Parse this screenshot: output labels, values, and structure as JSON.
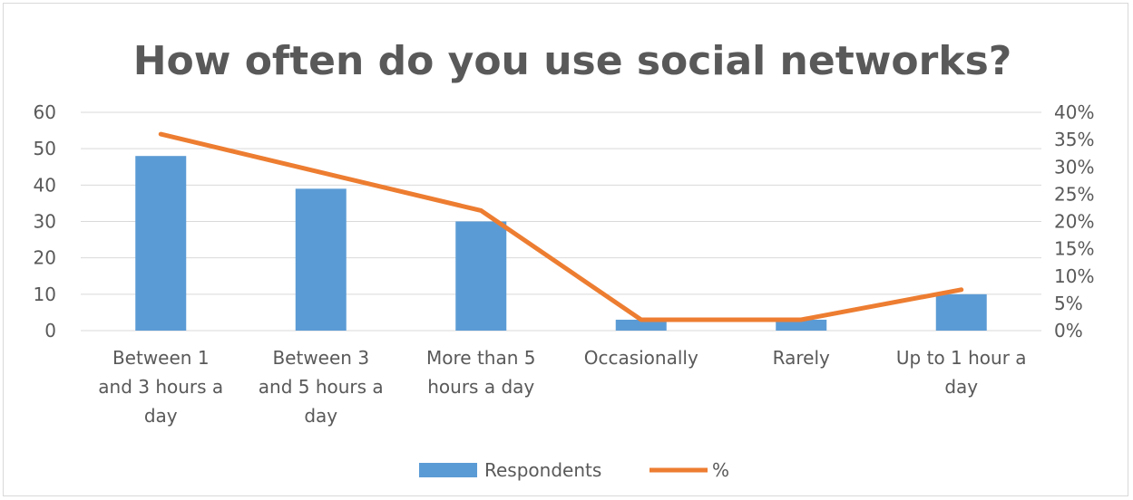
{
  "chart_data": {
    "type": "bar",
    "title": "How often do you use social networks?",
    "categories": [
      [
        "Between 1",
        "and 3 hours a",
        "day"
      ],
      [
        "Between 3",
        "and 5 hours a",
        "day"
      ],
      [
        "More than 5",
        "hours a day"
      ],
      [
        "Occasionally"
      ],
      [
        "Rarely"
      ],
      [
        "Up to 1 hour a",
        "day"
      ]
    ],
    "series": [
      {
        "name": "Respondents",
        "type": "bar",
        "axis": "left",
        "color": "#5b9bd5",
        "values": [
          48,
          39,
          30,
          3,
          3,
          10
        ]
      },
      {
        "name": "%",
        "type": "line",
        "axis": "right",
        "color": "#ed7d31",
        "values": [
          0.36,
          0.29,
          0.22,
          0.02,
          0.02,
          0.075
        ]
      }
    ],
    "y_left": {
      "lim": [
        0,
        60
      ],
      "ticks": [
        "0",
        "10",
        "20",
        "30",
        "40",
        "50",
        "60"
      ]
    },
    "y_right": {
      "lim": [
        0,
        0.4
      ],
      "ticks": [
        "0%",
        "5%",
        "10%",
        "15%",
        "20%",
        "25%",
        "30%",
        "35%",
        "40%"
      ]
    },
    "grid": true,
    "legend": "bottom"
  }
}
